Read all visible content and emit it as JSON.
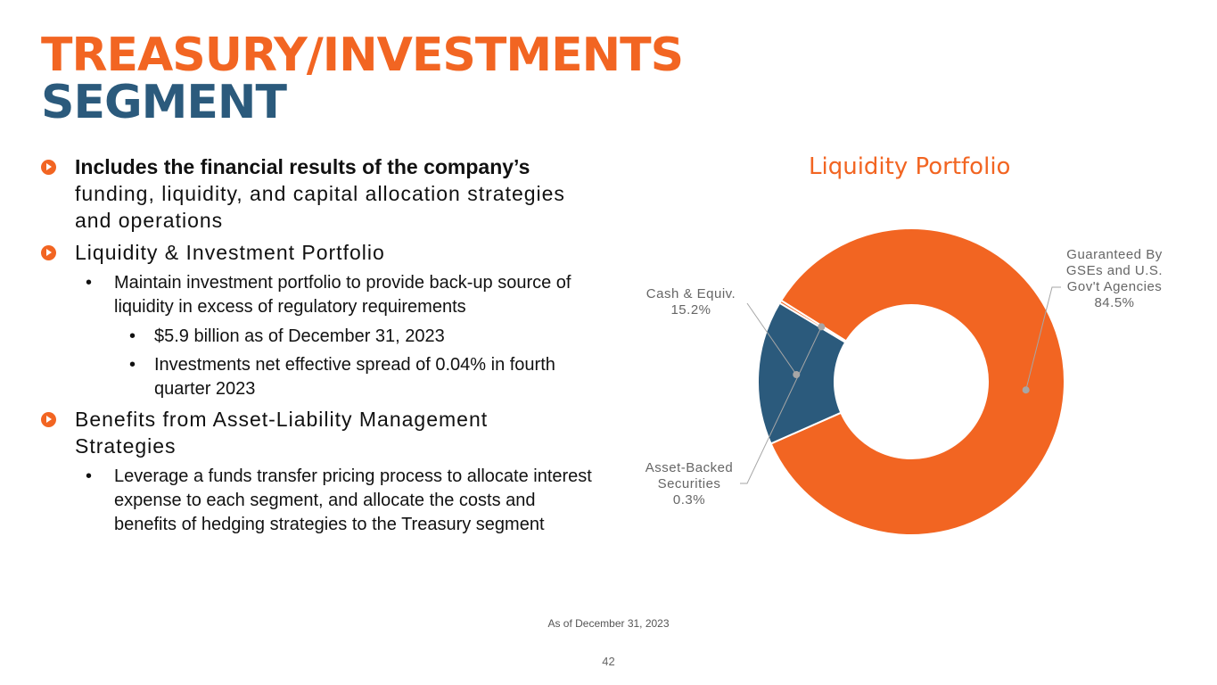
{
  "title": {
    "line1": "TREASURY/INVESTMENTS",
    "line2": "SEGMENT"
  },
  "bullets": {
    "b1_bold": "Includes the financial results of the company’s",
    "b1_rest": " funding, liquidity, and capital allocation strategies and operations",
    "b2": "Liquidity & Investment Portfolio",
    "b2_sub1": "Maintain investment portfolio to provide back-up source of liquidity in excess of regulatory requirements",
    "b2_sub1_a": "$5.9 billion as of December 31, 2023",
    "b2_sub1_b": "Investments net effective spread of 0.04% in fourth quarter 2023",
    "b3": "Benefits from Asset-Liability Management Strategies",
    "b3_sub1": "Leverage a funds transfer pricing process to allocate interest expense to each segment, and allocate the costs and benefits of hedging strategies to the Treasury segment",
    "sub_bullet_char": "•"
  },
  "chart_data": {
    "type": "pie",
    "title": "Liquidity Portfolio",
    "slices": [
      {
        "label": "Guaranteed By GSEs and U.S. Gov't Agencies",
        "value": 84.5,
        "value_label": "84.5%",
        "color": "#f26522"
      },
      {
        "label": "Cash & Equiv.",
        "value": 15.2,
        "value_label": "15.2%",
        "color": "#2b5a7c"
      },
      {
        "label": "Asset-Backed Securities",
        "value": 0.3,
        "value_label": "0.3%",
        "color": "#f26522"
      }
    ]
  },
  "footnote": "As of December 31, 2023",
  "page_number": "42",
  "colors": {
    "orange": "#f26522",
    "navy": "#2b5a7c"
  }
}
